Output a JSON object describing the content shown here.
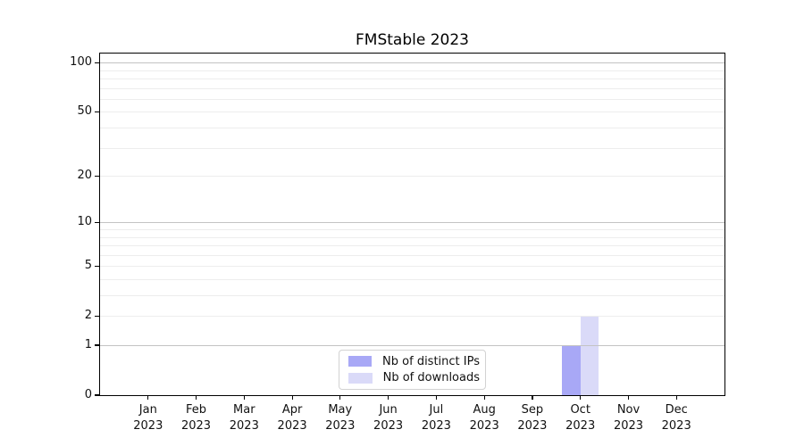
{
  "chart_data": {
    "type": "bar",
    "title": "FMStable 2023",
    "categories": [
      "Jan",
      "Feb",
      "Mar",
      "Apr",
      "May",
      "Jun",
      "Jul",
      "Aug",
      "Sep",
      "Oct",
      "Nov",
      "Dec"
    ],
    "category_year": "2023",
    "series": [
      {
        "name": "Nb of distinct IPs",
        "color": "#a8a8f6",
        "values": [
          0,
          0,
          0,
          0,
          0,
          0,
          0,
          0,
          0,
          1,
          0,
          0
        ]
      },
      {
        "name": "Nb of downloads",
        "color": "#dadaf8",
        "values": [
          0,
          0,
          0,
          0,
          0,
          0,
          0,
          0,
          0,
          2,
          0,
          0
        ]
      }
    ],
    "xlabel": "",
    "ylabel": "",
    "yscale": "log1p",
    "ylim": [
      0,
      115
    ],
    "yticks": [
      0,
      1,
      2,
      5,
      10,
      20,
      50,
      100
    ],
    "gridlines": {
      "major": [
        1,
        10,
        100
      ],
      "minor": [
        2,
        3,
        4,
        5,
        6,
        7,
        8,
        9,
        20,
        30,
        40,
        50,
        60,
        70,
        80,
        90
      ]
    },
    "legend": {
      "position": "lower center"
    },
    "colors": {
      "axis": "#000000",
      "grid_major": "#c3c3c3",
      "grid_minor": "#ededed",
      "background": "#ffffff"
    }
  }
}
